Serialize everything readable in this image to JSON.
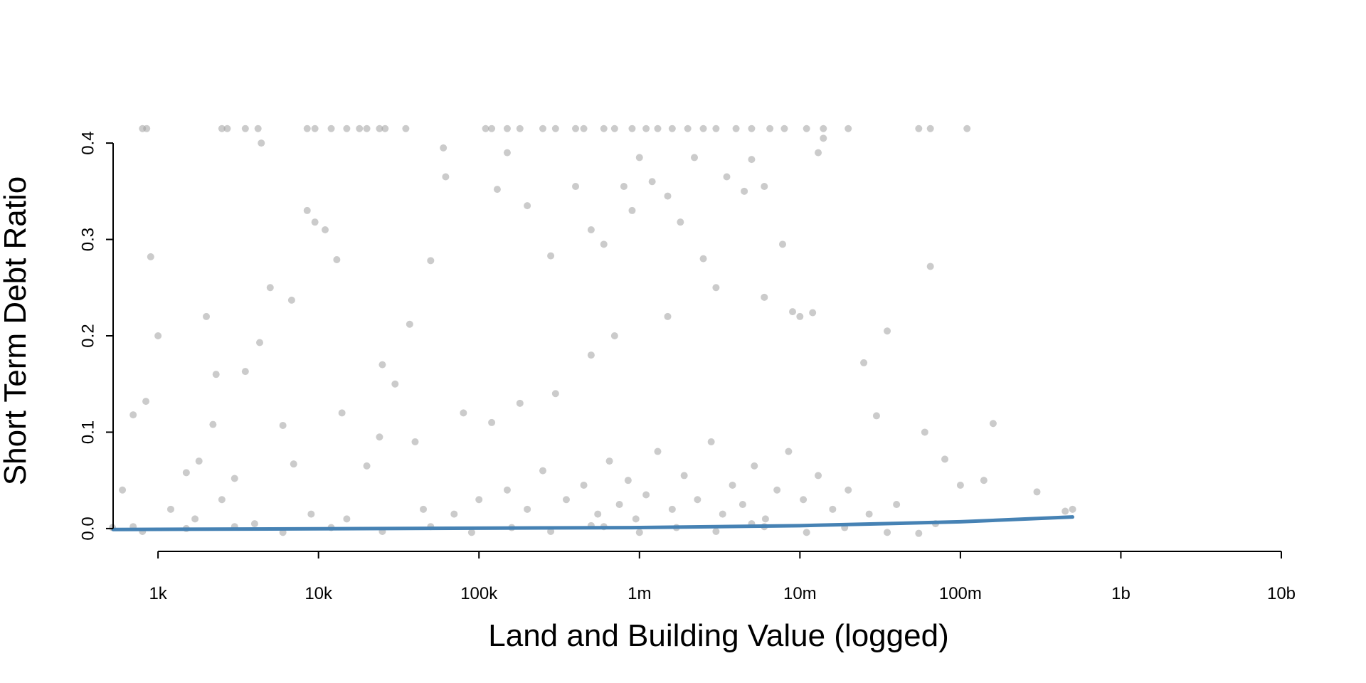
{
  "chart_data": {
    "type": "scatter",
    "x_label": "Land and Building Value (logged)",
    "y_label": "Short Term Debt Ratio",
    "xscale": "log",
    "xlim": [
      525,
      10000000000
    ],
    "ylim": [
      -0.02,
      0.42
    ],
    "xticks": [
      {
        "value": 1000,
        "label": "1k"
      },
      {
        "value": 10000,
        "label": "10k"
      },
      {
        "value": 100000,
        "label": "100k"
      },
      {
        "value": 1000000,
        "label": "1m"
      },
      {
        "value": 10000000,
        "label": "10m"
      },
      {
        "value": 100000000,
        "label": "100m"
      },
      {
        "value": 1000000000,
        "label": "1b"
      },
      {
        "value": 10000000000,
        "label": "10b"
      }
    ],
    "yticks": [
      {
        "value": 0,
        "label": "0.0"
      },
      0.1,
      0.2,
      0.3,
      0.4
    ],
    "grid": false,
    "series": [
      {
        "type": "scatter",
        "color": "#a0a0a0",
        "x": [
          800,
          850,
          2500,
          2700,
          3500,
          4200,
          8500,
          9500,
          12000,
          15000,
          18000,
          20000,
          24000,
          26000,
          35000,
          110000,
          120000,
          150000,
          180000,
          250000,
          300000,
          400000,
          450000,
          600000,
          700000,
          900000,
          1100000,
          1300000,
          1600000,
          2000000,
          2500000,
          3000000,
          4000000,
          5000000,
          6500000,
          8000000,
          11000000,
          14000000,
          20000000,
          55000000,
          65000000,
          110000000,
          900,
          1000,
          840,
          2000,
          700,
          4400,
          4300,
          8500,
          9500,
          11000,
          13000,
          5000,
          6800,
          3500,
          2300,
          37000,
          50000,
          60000,
          62000,
          130000,
          150000,
          200000,
          280000,
          400000,
          500000,
          600000,
          800000,
          900000,
          1000000,
          1200000,
          1500000,
          1800000,
          2200000,
          2500000,
          3500000,
          4500000,
          5000000,
          6000000,
          7800000,
          14000000,
          13000000,
          65000000,
          35000000,
          30000000,
          25000000,
          160000000,
          300000000,
          450000000,
          500000000,
          80000000,
          100000000,
          140000000,
          60000000,
          10000000,
          9000000,
          12000000,
          6000000,
          3000000,
          1500000,
          700000,
          500000,
          300000,
          180000,
          120000,
          80000,
          40000,
          24000,
          25000,
          30000,
          20000,
          14000,
          7000,
          6000,
          3000,
          2200,
          1800,
          1500,
          600,
          1200,
          2500,
          150000,
          200000,
          250000,
          350000,
          450000,
          550000,
          650000,
          750000,
          850000,
          950000,
          1100000,
          1300000,
          1600000,
          1900000,
          2300000,
          2800000,
          3300000,
          3800000,
          4400000,
          5200000,
          6100000,
          7200000,
          8500000,
          10500000,
          13000000,
          16000000,
          20000000,
          27000000,
          40000000,
          100000,
          70000,
          45000,
          15000,
          9000,
          4000,
          1700,
          700,
          520,
          5000000,
          500000,
          800,
          1500,
          3000,
          6000,
          12000,
          25000,
          50000,
          90000,
          160000,
          280000,
          600000,
          1000000,
          1700000,
          3000000,
          6000000,
          11000000,
          19000000,
          35000000,
          55000000,
          70000000
        ],
        "values": [
          0.415,
          0.415,
          0.415,
          0.415,
          0.415,
          0.415,
          0.415,
          0.415,
          0.415,
          0.415,
          0.415,
          0.415,
          0.415,
          0.415,
          0.415,
          0.415,
          0.415,
          0.415,
          0.415,
          0.415,
          0.415,
          0.415,
          0.415,
          0.415,
          0.415,
          0.415,
          0.415,
          0.415,
          0.415,
          0.415,
          0.415,
          0.415,
          0.415,
          0.415,
          0.415,
          0.415,
          0.415,
          0.415,
          0.415,
          0.415,
          0.415,
          0.415,
          0.282,
          0.2,
          0.132,
          0.22,
          0.118,
          0.4,
          0.193,
          0.33,
          0.318,
          0.31,
          0.279,
          0.25,
          0.237,
          0.163,
          0.16,
          0.212,
          0.278,
          0.395,
          0.365,
          0.352,
          0.39,
          0.335,
          0.283,
          0.355,
          0.31,
          0.295,
          0.355,
          0.33,
          0.385,
          0.36,
          0.345,
          0.318,
          0.385,
          0.28,
          0.365,
          0.35,
          0.383,
          0.355,
          0.295,
          0.405,
          0.39,
          0.272,
          0.205,
          0.117,
          0.172,
          0.109,
          0.038,
          0.018,
          0.02,
          0.072,
          0.045,
          0.05,
          0.1,
          0.22,
          0.225,
          0.224,
          0.24,
          0.25,
          0.22,
          0.2,
          0.18,
          0.14,
          0.13,
          0.11,
          0.12,
          0.09,
          0.095,
          0.17,
          0.15,
          0.065,
          0.12,
          0.067,
          0.107,
          0.052,
          0.108,
          0.07,
          0.058,
          0.04,
          0.02,
          0.03,
          0.04,
          0.02,
          0.06,
          0.03,
          0.045,
          0.015,
          0.07,
          0.025,
          0.05,
          0.01,
          0.035,
          0.08,
          0.02,
          0.055,
          0.03,
          0.09,
          0.015,
          0.045,
          0.025,
          0.065,
          0.01,
          0.04,
          0.08,
          0.03,
          0.055,
          0.02,
          0.04,
          0.015,
          0.025,
          0.03,
          0.015,
          0.02,
          0.01,
          0.015,
          0.005,
          0.01,
          0.002,
          0.001,
          0.005,
          0.003,
          -0.003,
          0,
          0.002,
          -0.004,
          0.001,
          -0.003,
          0.002,
          -0.004,
          0.001,
          -0.003,
          0.002,
          -0.004,
          0.001,
          -0.003,
          0.002,
          -0.004,
          0.001,
          -0.004,
          -0.005,
          0.005
        ]
      },
      {
        "type": "line",
        "color": "#4682b4",
        "x": [
          525,
          1000000,
          10000000,
          100000000,
          500000000
        ],
        "values": [
          -0.001,
          0.001,
          0.003,
          0.007,
          0.012
        ]
      }
    ]
  }
}
